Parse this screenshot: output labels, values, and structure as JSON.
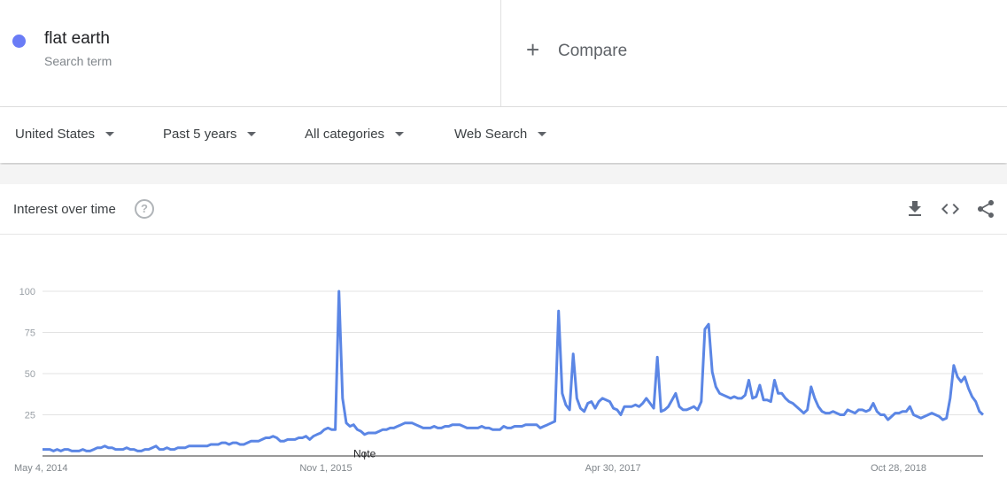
{
  "term": {
    "name": "flat earth",
    "subtitle": "Search term",
    "color": "#6a7cf6"
  },
  "compare": {
    "label": "Compare"
  },
  "filters": [
    {
      "label": "United States"
    },
    {
      "label": "Past 5 years"
    },
    {
      "label": "All categories"
    },
    {
      "label": "Web Search"
    }
  ],
  "card": {
    "title": "Interest over time",
    "help_icon": "help-circle-icon",
    "actions": [
      "download-icon",
      "embed-code-icon",
      "share-icon"
    ]
  },
  "chart_data": {
    "type": "line",
    "xlabel": "",
    "ylabel": "",
    "ylim": [
      0,
      100
    ],
    "yticks": [
      25,
      50,
      75,
      100
    ],
    "grid": true,
    "line_color": "#5b86e5",
    "x_tick_labels": [
      "May 4, 2014",
      "Nov 1, 2015",
      "Apr 30, 2017",
      "Oct 28, 2018"
    ],
    "annotation": {
      "label": "Note",
      "at_week": 88
    },
    "series": [
      {
        "values": [
          4,
          4,
          4,
          3,
          4,
          3,
          4,
          4,
          3,
          3,
          3,
          4,
          3,
          3,
          4,
          5,
          5,
          6,
          5,
          5,
          4,
          4,
          4,
          5,
          4,
          4,
          3,
          3,
          4,
          4,
          5,
          6,
          4,
          4,
          5,
          4,
          4,
          5,
          5,
          5,
          6,
          6,
          6,
          6,
          6,
          6,
          7,
          7,
          7,
          8,
          8,
          7,
          8,
          8,
          7,
          7,
          8,
          9,
          9,
          9,
          10,
          11,
          11,
          12,
          11,
          9,
          9,
          10,
          10,
          10,
          11,
          11,
          12,
          10,
          12,
          13,
          14,
          16,
          17,
          16,
          16,
          100,
          35,
          20,
          18,
          19,
          16,
          15,
          13,
          14,
          14,
          14,
          15,
          16,
          16,
          17,
          17,
          18,
          19,
          20,
          20,
          20,
          19,
          18,
          17,
          17,
          17,
          18,
          17,
          17,
          18,
          18,
          19,
          19,
          19,
          18,
          17,
          17,
          17,
          17,
          18,
          17,
          17,
          16,
          16,
          16,
          18,
          17,
          17,
          18,
          18,
          18,
          19,
          19,
          19,
          19,
          17,
          18,
          19,
          20,
          21,
          88,
          38,
          31,
          28,
          62,
          35,
          29,
          27,
          32,
          33,
          29,
          33,
          35,
          34,
          33,
          29,
          28,
          25,
          30,
          30,
          30,
          31,
          30,
          32,
          35,
          32,
          29,
          60,
          27,
          28,
          30,
          34,
          38,
          30,
          28,
          28,
          29,
          30,
          28,
          33,
          77,
          80,
          51,
          42,
          38,
          37,
          36,
          35,
          36,
          35,
          35,
          37,
          46,
          35,
          36,
          43,
          34,
          34,
          33,
          46,
          38,
          38,
          35,
          33,
          32,
          30,
          28,
          26,
          28,
          42,
          35,
          30,
          27,
          26,
          26,
          27,
          26,
          25,
          25,
          28,
          27,
          26,
          28,
          28,
          27,
          28,
          32,
          27,
          25,
          25,
          22,
          24,
          26,
          26,
          27,
          27,
          30,
          25,
          24,
          23,
          24,
          25,
          26,
          25,
          24,
          22,
          23,
          35,
          55,
          48,
          45,
          48,
          41,
          36,
          33,
          27,
          25
        ]
      }
    ]
  }
}
